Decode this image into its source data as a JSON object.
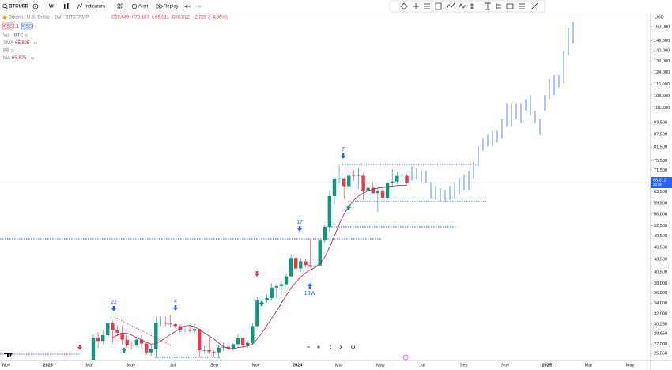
{
  "toolbar": {
    "symbol": "BTCUSD",
    "interval": "W",
    "indicators": "Indicators",
    "alert": "Alert",
    "replay": "Replay"
  },
  "legend": {
    "symbol_title": "Bitcoin / U.S. Dollar · 1W · BITSTAMP",
    "ohlc": [
      {
        "key": "O",
        "value": "69,649"
      },
      {
        "key": "H",
        "value": "70,167"
      },
      {
        "key": "L",
        "value": "66,011"
      },
      {
        "key": "C",
        "value": "66,812"
      }
    ],
    "change": "−2,828 (−4.06%)",
    "bid": "66822",
    "spread": "1",
    "ask": "66823",
    "indicators": [
      {
        "name": "Vol · BTC"
      },
      {
        "name": "SMA",
        "value": "65,825"
      },
      {
        "name": "BB"
      },
      {
        "name": "MA",
        "value": "65,825"
      }
    ]
  },
  "chart": {
    "currency": "USD",
    "log_scale": true,
    "ylim": [
      25650,
      160000
    ],
    "price_ticks": [
      {
        "value": 160000,
        "label": "160,000"
      },
      {
        "value": 148000,
        "label": "148,000"
      },
      {
        "value": 140000,
        "label": "140,000"
      },
      {
        "value": 132000,
        "label": "132,000"
      },
      {
        "value": 124000,
        "label": "124,000"
      },
      {
        "value": 116000,
        "label": "116,000"
      },
      {
        "value": 108500,
        "label": "108,500"
      },
      {
        "value": 101500,
        "label": "101,500"
      },
      {
        "value": 93500,
        "label": "93,500"
      },
      {
        "value": 87500,
        "label": "87,500"
      },
      {
        "value": 81500,
        "label": "81,500"
      },
      {
        "value": 75500,
        "label": "75,500"
      },
      {
        "value": 71500,
        "label": "71,500"
      },
      {
        "value": 63500,
        "label": "63,500"
      },
      {
        "value": 59500,
        "label": "59,500"
      },
      {
        "value": 56000,
        "label": "56,000"
      },
      {
        "value": 52500,
        "label": "52,500"
      },
      {
        "value": 49500,
        "label": "49,500"
      },
      {
        "value": 46500,
        "label": "46,500"
      },
      {
        "value": 43500,
        "label": "43,500"
      },
      {
        "value": 40500,
        "label": "40,500"
      },
      {
        "value": 38000,
        "label": "38,000"
      },
      {
        "value": 36000,
        "label": "36,000"
      },
      {
        "value": 34000,
        "label": "34,000"
      },
      {
        "value": 32000,
        "label": "32,000"
      },
      {
        "value": 30250,
        "label": "30,250"
      },
      {
        "value": 28650,
        "label": "28,650"
      },
      {
        "value": 27000,
        "label": "27,000"
      },
      {
        "value": 25650,
        "label": "25,650"
      }
    ],
    "price_tag": {
      "value": 66812,
      "label": "66,812",
      "countdown": "3d 6h"
    },
    "time_axis": [
      "Nov",
      "2023",
      "Mar",
      "May",
      "Jul",
      "Sep",
      "Nov",
      "2024",
      "Mar",
      "May",
      "Jul",
      "Sep",
      "Nov",
      "2025",
      "Mar",
      "May"
    ],
    "candle_colors": {
      "up": "#089981",
      "down": "#f23645"
    },
    "ma_color": "#b71c5c",
    "projection_color": "#5b8def",
    "candles": [
      {
        "o": 24000,
        "h": 28500,
        "l": 23000,
        "c": 28000
      },
      {
        "o": 28000,
        "h": 28900,
        "l": 26500,
        "c": 27500
      },
      {
        "o": 27500,
        "h": 29200,
        "l": 27000,
        "c": 28400
      },
      {
        "o": 28400,
        "h": 31000,
        "l": 28000,
        "c": 30400
      },
      {
        "o": 30400,
        "h": 30800,
        "l": 27200,
        "c": 29200
      },
      {
        "o": 29200,
        "h": 30000,
        "l": 28300,
        "c": 28800
      },
      {
        "o": 28800,
        "h": 29900,
        "l": 26900,
        "c": 27700
      },
      {
        "o": 27700,
        "h": 28400,
        "l": 26500,
        "c": 26900
      },
      {
        "o": 26900,
        "h": 27500,
        "l": 26200,
        "c": 26800
      },
      {
        "o": 26800,
        "h": 28200,
        "l": 26600,
        "c": 27700
      },
      {
        "o": 27700,
        "h": 28400,
        "l": 26500,
        "c": 27100
      },
      {
        "o": 27100,
        "h": 27400,
        "l": 25400,
        "c": 25800
      },
      {
        "o": 25800,
        "h": 26800,
        "l": 25300,
        "c": 26300
      },
      {
        "o": 26300,
        "h": 31400,
        "l": 25000,
        "c": 30500
      },
      {
        "o": 30500,
        "h": 31400,
        "l": 29900,
        "c": 30500
      },
      {
        "o": 30500,
        "h": 31500,
        "l": 29900,
        "c": 30300
      },
      {
        "o": 30300,
        "h": 31800,
        "l": 29600,
        "c": 30200
      },
      {
        "o": 30200,
        "h": 30400,
        "l": 29600,
        "c": 29900
      },
      {
        "o": 29900,
        "h": 30100,
        "l": 28900,
        "c": 29200
      },
      {
        "o": 29200,
        "h": 29600,
        "l": 28800,
        "c": 29300
      },
      {
        "o": 29300,
        "h": 30100,
        "l": 28900,
        "c": 29100
      },
      {
        "o": 29100,
        "h": 30200,
        "l": 28700,
        "c": 29400
      },
      {
        "o": 29400,
        "h": 29500,
        "l": 25100,
        "c": 26100
      },
      {
        "o": 26100,
        "h": 26700,
        "l": 25700,
        "c": 26100
      },
      {
        "o": 26100,
        "h": 28100,
        "l": 25600,
        "c": 25900
      },
      {
        "o": 25900,
        "h": 26100,
        "l": 25200,
        "c": 25800
      },
      {
        "o": 25800,
        "h": 26800,
        "l": 24900,
        "c": 26500
      },
      {
        "o": 26500,
        "h": 27400,
        "l": 26000,
        "c": 26600
      },
      {
        "o": 26600,
        "h": 26900,
        "l": 26000,
        "c": 26300
      },
      {
        "o": 26300,
        "h": 27200,
        "l": 26000,
        "c": 27000
      },
      {
        "o": 27000,
        "h": 28600,
        "l": 26600,
        "c": 27900
      },
      {
        "o": 27900,
        "h": 28100,
        "l": 26500,
        "c": 26800
      },
      {
        "o": 26800,
        "h": 27600,
        "l": 26500,
        "c": 27200
      },
      {
        "o": 27200,
        "h": 30400,
        "l": 26800,
        "c": 29900
      },
      {
        "o": 29900,
        "h": 35200,
        "l": 29700,
        "c": 34500
      },
      {
        "o": 34500,
        "h": 35300,
        "l": 33400,
        "c": 34600
      },
      {
        "o": 34500,
        "h": 35800,
        "l": 34100,
        "c": 35000
      },
      {
        "o": 35000,
        "h": 38000,
        "l": 34600,
        "c": 37100
      },
      {
        "o": 37100,
        "h": 37900,
        "l": 34900,
        "c": 37400
      },
      {
        "o": 37400,
        "h": 38400,
        "l": 35600,
        "c": 37800
      },
      {
        "o": 37800,
        "h": 40200,
        "l": 37500,
        "c": 39500
      },
      {
        "o": 39500,
        "h": 44700,
        "l": 39400,
        "c": 43800
      },
      {
        "o": 43800,
        "h": 44000,
        "l": 40300,
        "c": 41300
      },
      {
        "o": 41300,
        "h": 43800,
        "l": 40600,
        "c": 43000
      },
      {
        "o": 43000,
        "h": 43500,
        "l": 41500,
        "c": 42100
      },
      {
        "o": 42100,
        "h": 48900,
        "l": 41500,
        "c": 41700
      },
      {
        "o": 41700,
        "h": 43200,
        "l": 38500,
        "c": 42000
      },
      {
        "o": 42000,
        "h": 48600,
        "l": 41800,
        "c": 48300
      },
      {
        "o": 48300,
        "h": 52900,
        "l": 47700,
        "c": 52100
      },
      {
        "o": 52100,
        "h": 64000,
        "l": 50600,
        "c": 62000
      },
      {
        "o": 62000,
        "h": 69000,
        "l": 59300,
        "c": 68300
      },
      {
        "o": 68300,
        "h": 73800,
        "l": 66500,
        "c": 68400
      },
      {
        "o": 68400,
        "h": 68500,
        "l": 61000,
        "c": 65500
      },
      {
        "o": 65500,
        "h": 70000,
        "l": 62500,
        "c": 69700
      },
      {
        "o": 69700,
        "h": 71700,
        "l": 67500,
        "c": 69400
      },
      {
        "o": 69400,
        "h": 72600,
        "l": 64500,
        "c": 69700
      },
      {
        "o": 69700,
        "h": 70200,
        "l": 60700,
        "c": 63900
      },
      {
        "o": 63900,
        "h": 65800,
        "l": 59700,
        "c": 64900
      },
      {
        "o": 64900,
        "h": 67200,
        "l": 62800,
        "c": 63000
      },
      {
        "o": 63000,
        "h": 64800,
        "l": 56600,
        "c": 63900
      },
      {
        "o": 63900,
        "h": 64500,
        "l": 60800,
        "c": 61400
      },
      {
        "o": 61400,
        "h": 67000,
        "l": 60700,
        "c": 66800
      },
      {
        "o": 66800,
        "h": 71900,
        "l": 65100,
        "c": 67200
      },
      {
        "o": 67200,
        "h": 71000,
        "l": 66300,
        "c": 69600
      },
      {
        "o": 69600,
        "h": 70600,
        "l": 67000,
        "c": 69649
      },
      {
        "o": 69649,
        "h": 70167,
        "l": 66011,
        "c": 66812
      }
    ],
    "ma": [
      null,
      null,
      null,
      null,
      28000,
      28400,
      28700,
      28700,
      28400,
      28000,
      27700,
      27300,
      27000,
      27100,
      27500,
      28000,
      28500,
      29000,
      29500,
      29900,
      30000,
      29800,
      29300,
      28800,
      28300,
      27800,
      27200,
      26600,
      26400,
      26300,
      26500,
      26600,
      26700,
      27000,
      27800,
      28800,
      30000,
      31200,
      32500,
      34000,
      35500,
      37000,
      38200,
      39300,
      40300,
      41000,
      41500,
      42500,
      44000,
      46500,
      49500,
      53000,
      56000,
      58500,
      60500,
      62000,
      63000,
      63800,
      64400,
      64800,
      65000,
      65300,
      65500,
      65700,
      65800,
      65825
    ],
    "projection": [
      [
        67500,
        73200
      ],
      [
        68100,
        72500
      ],
      [
        67000,
        71500
      ],
      [
        66400,
        71500
      ],
      [
        61200,
        67000
      ],
      [
        60700,
        65600
      ],
      [
        59900,
        64700
      ],
      [
        59900,
        64100
      ],
      [
        60700,
        65600
      ],
      [
        61200,
        67000
      ],
      [
        62600,
        68400
      ],
      [
        64100,
        70000
      ],
      [
        64100,
        71500
      ],
      [
        68400,
        74800
      ],
      [
        73200,
        81800
      ],
      [
        80000,
        85500
      ],
      [
        81800,
        87400
      ],
      [
        81800,
        89400
      ],
      [
        83600,
        89400
      ],
      [
        85500,
        95500
      ],
      [
        91300,
        104400
      ],
      [
        91300,
        104400
      ],
      [
        95500,
        104400
      ],
      [
        93400,
        104400
      ],
      [
        99900,
        106700
      ],
      [
        97600,
        109100
      ],
      [
        93400,
        99900
      ],
      [
        87400,
        95500
      ],
      [
        99900,
        109100
      ],
      [
        106700,
        119400
      ],
      [
        109100,
        122000
      ],
      [
        114100,
        122000
      ],
      [
        116800,
        140000
      ],
      [
        136300,
        159300
      ],
      [
        145800,
        164300
      ]
    ],
    "annotations": [
      "22",
      "4",
      "17",
      "7",
      "19W"
    ]
  }
}
